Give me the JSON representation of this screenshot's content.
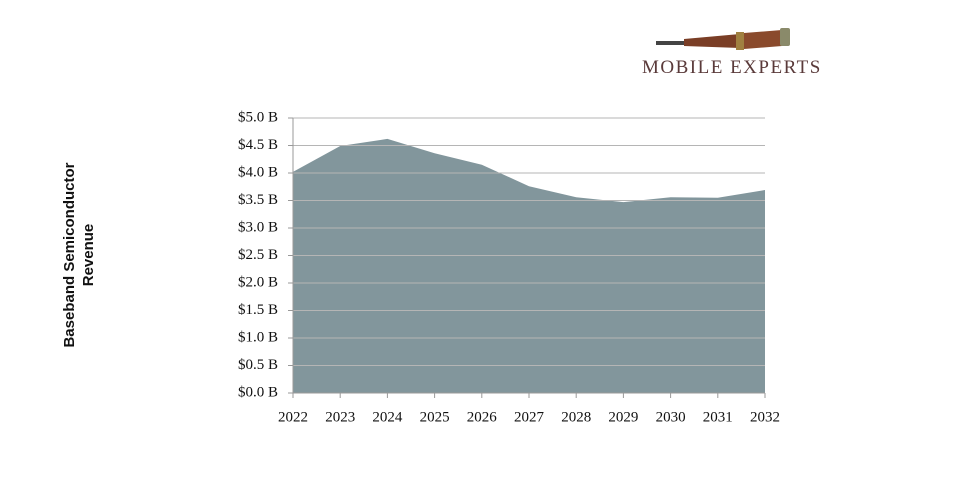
{
  "chart_data": {
    "type": "area",
    "logo": "MOBILE EXPERTS",
    "ylabel": "Baseband Semiconductor Revenue",
    "categories": [
      "2022",
      "2023",
      "2024",
      "2025",
      "2026",
      "2027",
      "2028",
      "2029",
      "2030",
      "2031",
      "2032"
    ],
    "values": [
      4.02,
      4.49,
      4.62,
      4.36,
      4.15,
      3.76,
      3.56,
      3.47,
      3.56,
      3.55,
      3.69
    ],
    "color": "#82969c",
    "ylim": [
      0,
      5
    ],
    "yticks": [
      {
        "value": 0,
        "label": "$0.0 B"
      },
      {
        "value": 0.5,
        "label": "$0.5 B"
      },
      {
        "value": 1,
        "label": "$1.0 B"
      },
      {
        "value": 1.5,
        "label": "$1.5 B"
      },
      {
        "value": 2,
        "label": "$2.0 B"
      },
      {
        "value": 2.5,
        "label": "$2.5 B"
      },
      {
        "value": 3,
        "label": "$3.0 B"
      },
      {
        "value": 3.5,
        "label": "$3.5 B"
      },
      {
        "value": 4,
        "label": "$4.0 B"
      },
      {
        "value": 4.5,
        "label": "$4.5 B"
      },
      {
        "value": 5,
        "label": "$5.0 B"
      }
    ],
    "grid": true
  }
}
